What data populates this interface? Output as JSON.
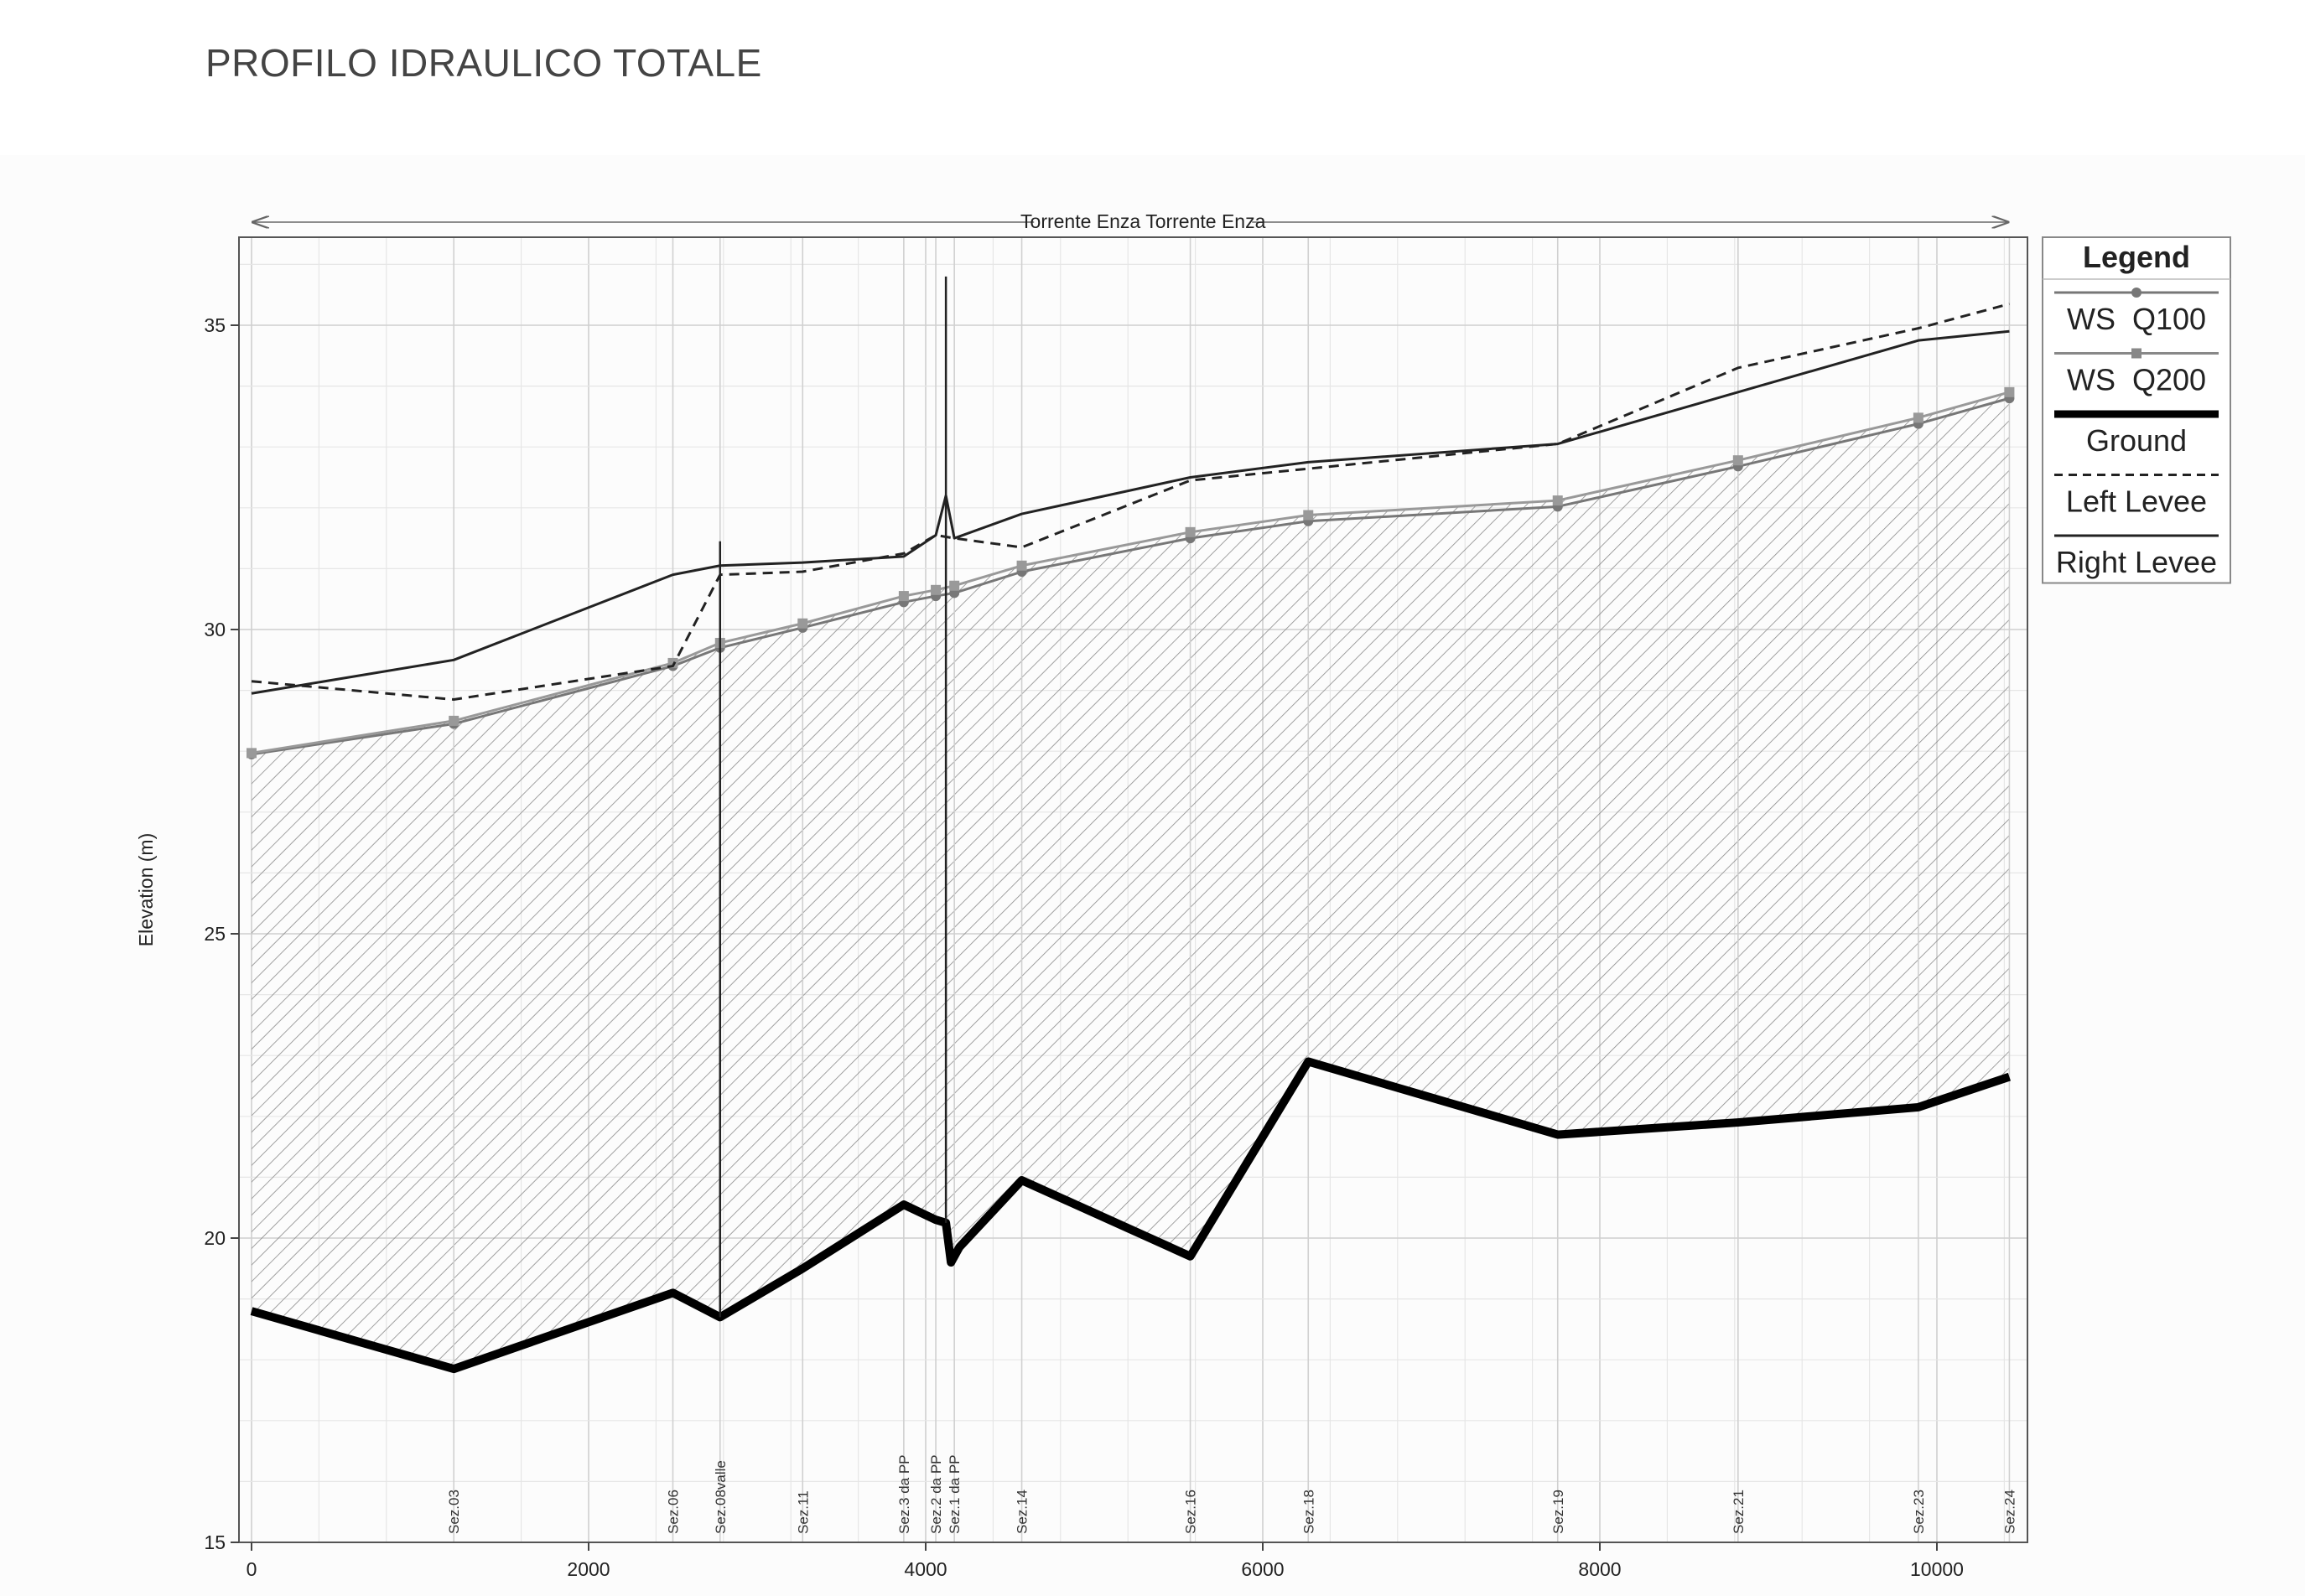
{
  "page": {
    "title": "PROFILO IDRAULICO TOTALE"
  },
  "chart_data": {
    "type": "line",
    "title": "Torrente Enza Torrente Enza",
    "ylabel": "Elevation (m)",
    "xlabel": "",
    "xlim": [
      0,
      10500
    ],
    "ylim": [
      15,
      36.5
    ],
    "x_ticks": [
      "0",
      "2000",
      "4000",
      "6000",
      "8000",
      "10000"
    ],
    "y_ticks": [
      "15",
      "20",
      "25",
      "30",
      "35"
    ],
    "grid": true,
    "legend": {
      "title": "Legend",
      "placement": "right",
      "entries": [
        "WS  Q100",
        "WS  Q200",
        "Ground",
        "Left Levee",
        "Right Levee"
      ]
    },
    "sections": [
      {
        "label": "Sez.03",
        "x": 1200
      },
      {
        "label": "Sez.06",
        "x": 2500
      },
      {
        "label": "Sez.08valle",
        "x": 2780
      },
      {
        "label": "Sez.11",
        "x": 3270
      },
      {
        "label": "Sez.3 da PP",
        "x": 3870
      },
      {
        "label": "Sez.2 da PP",
        "x": 4060
      },
      {
        "label": "Sez.1 da PP",
        "x": 4170
      },
      {
        "label": "Sez.14",
        "x": 4570
      },
      {
        "label": "Sez.16",
        "x": 5570
      },
      {
        "label": "Sez.18",
        "x": 6270
      },
      {
        "label": "Sez.19",
        "x": 7750
      },
      {
        "label": "Sez.21",
        "x": 8820
      },
      {
        "label": "Sez.23",
        "x": 9890
      },
      {
        "label": "Sez.24",
        "x": 10430
      }
    ],
    "series": [
      {
        "name": "WS  Q100",
        "color": "#777777",
        "points": [
          [
            0,
            27.95
          ],
          [
            1200,
            28.45
          ],
          [
            2500,
            29.4
          ],
          [
            2780,
            29.7
          ],
          [
            3270,
            30.03
          ],
          [
            3870,
            30.45
          ],
          [
            4060,
            30.55
          ],
          [
            4170,
            30.6
          ],
          [
            4570,
            30.95
          ],
          [
            5570,
            31.5
          ],
          [
            6270,
            31.78
          ],
          [
            7750,
            32.02
          ],
          [
            8820,
            32.68
          ],
          [
            9890,
            33.38
          ],
          [
            10430,
            33.8
          ]
        ]
      },
      {
        "name": "WS  Q200",
        "color": "#999999",
        "points": [
          [
            0,
            27.97
          ],
          [
            1200,
            28.5
          ],
          [
            2500,
            29.45
          ],
          [
            2780,
            29.78
          ],
          [
            3270,
            30.1
          ],
          [
            3870,
            30.55
          ],
          [
            4060,
            30.65
          ],
          [
            4170,
            30.72
          ],
          [
            4570,
            31.05
          ],
          [
            5570,
            31.6
          ],
          [
            6270,
            31.88
          ],
          [
            7750,
            32.12
          ],
          [
            8820,
            32.78
          ],
          [
            9890,
            33.48
          ],
          [
            10430,
            33.9
          ]
        ]
      },
      {
        "name": "Ground",
        "color": "#000000",
        "points": [
          [
            0,
            18.8
          ],
          [
            1200,
            17.85
          ],
          [
            2500,
            19.1
          ],
          [
            2780,
            18.7
          ],
          [
            3270,
            19.5
          ],
          [
            3870,
            20.55
          ],
          [
            4060,
            20.3
          ],
          [
            4120,
            20.25
          ],
          [
            4150,
            19.6
          ],
          [
            4200,
            19.85
          ],
          [
            4570,
            20.95
          ],
          [
            5570,
            19.7
          ],
          [
            6270,
            22.9
          ],
          [
            7750,
            21.7
          ],
          [
            8820,
            21.9
          ],
          [
            9890,
            22.15
          ],
          [
            10430,
            22.65
          ]
        ]
      },
      {
        "name": "Left Levee",
        "color": "#222222",
        "points": [
          [
            0,
            29.15
          ],
          [
            1200,
            28.85
          ],
          [
            2500,
            29.4
          ],
          [
            2780,
            30.9
          ],
          [
            3270,
            30.95
          ],
          [
            3870,
            31.25
          ],
          [
            4060,
            31.55
          ],
          [
            4170,
            31.5
          ],
          [
            4570,
            31.35
          ],
          [
            5570,
            32.45
          ],
          [
            7750,
            33.05
          ],
          [
            8820,
            34.3
          ],
          [
            9890,
            34.95
          ],
          [
            10430,
            35.35
          ]
        ]
      },
      {
        "name": "Right Levee",
        "color": "#222222",
        "points": [
          [
            0,
            28.95
          ],
          [
            1200,
            29.5
          ],
          [
            2500,
            30.9
          ],
          [
            2780,
            31.05
          ],
          [
            3270,
            31.1
          ],
          [
            3870,
            31.2
          ],
          [
            4060,
            31.55
          ],
          [
            4120,
            32.2
          ],
          [
            4170,
            31.5
          ],
          [
            4570,
            31.9
          ],
          [
            5570,
            32.5
          ],
          [
            6270,
            32.75
          ],
          [
            7750,
            33.05
          ],
          [
            8820,
            33.9
          ],
          [
            9890,
            34.75
          ],
          [
            10430,
            34.9
          ]
        ]
      }
    ],
    "vertical_structures": [
      {
        "x": 2780,
        "top": 31.45,
        "bottom": 18.7
      },
      {
        "x": 4120,
        "top": 35.8,
        "bottom": 20.25
      }
    ]
  }
}
